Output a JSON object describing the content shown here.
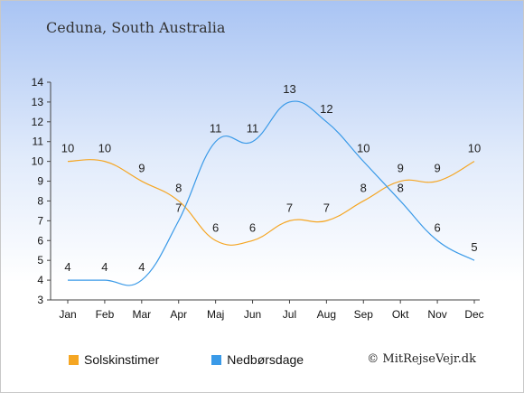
{
  "title": "Ceduna, South Australia",
  "copyright": "© MitRejseVejr.dk",
  "chart_data": {
    "type": "line",
    "categories": [
      "Jan",
      "Feb",
      "Mar",
      "Apr",
      "Maj",
      "Jun",
      "Jul",
      "Aug",
      "Sep",
      "Okt",
      "Nov",
      "Dec"
    ],
    "ylim": [
      3,
      14
    ],
    "yticks": [
      3,
      4,
      5,
      6,
      7,
      8,
      9,
      10,
      11,
      12,
      13,
      14
    ],
    "grid": false,
    "legend_position": "bottom-left",
    "series": [
      {
        "name": "Solskinstimer",
        "color": "#f5a623",
        "values": [
          10,
          10,
          9,
          8,
          6,
          6,
          7,
          7,
          8,
          9,
          9,
          10
        ]
      },
      {
        "name": "Nedbørsdage",
        "color": "#3a9ae8",
        "values": [
          4,
          4,
          4,
          7,
          11,
          11,
          13,
          12,
          10,
          8,
          6,
          5
        ]
      }
    ]
  }
}
